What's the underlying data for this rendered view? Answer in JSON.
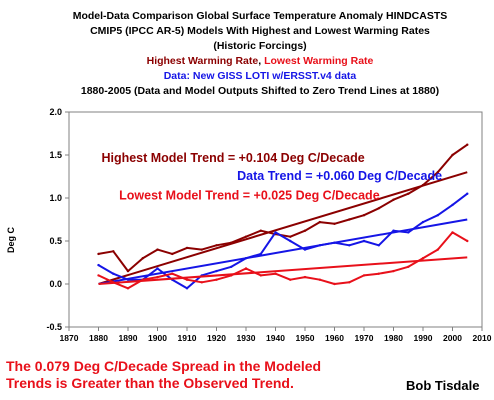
{
  "chart_data": {
    "type": "line",
    "title_lines": [
      "Model-Data Comparison Global Surface Temperature Anomaly HINDCASTS",
      "CMIP5 (IPCC AR-5) Models With Highest and Lowest Warming Rates",
      "(Historic Forcings)"
    ],
    "subtitle_highest": "Highest Warming Rate",
    "subtitle_separator": ", ",
    "subtitle_lowest": "Lowest Warming Rate",
    "data_line": "Data: New GISS LOTI w/ERSST.v4 data",
    "period_line": "1880-2005 (Data and Model Outputs Shifted to Zero Trend Lines at 1880)",
    "ylabel": "Deg C",
    "xlabel": "",
    "xlim": [
      1870,
      2010
    ],
    "ylim": [
      -0.5,
      2.0
    ],
    "x_ticks": [
      "1870",
      "1880",
      "1890",
      "1900",
      "1910",
      "1920",
      "1930",
      "1940",
      "1950",
      "1960",
      "1970",
      "1980",
      "1990",
      "2000",
      "2010"
    ],
    "y_ticks": [
      "-0.5",
      "0.0",
      "0.5",
      "1.0",
      "1.5",
      "2.0"
    ],
    "grid": false,
    "annotations": [
      {
        "text": "Highest Model Trend = +0.104 Deg C/Decade",
        "color": "#8b0000",
        "x": 1881,
        "y": 1.42
      },
      {
        "text": "Data Trend = +0.060 Deg C/Decade",
        "color": "#1515e6",
        "x": 1927,
        "y": 1.21
      },
      {
        "text": "Lowest Model Trend = +0.025 Deg C/Decade",
        "color": "#e8101a",
        "x": 1887,
        "y": 0.98
      }
    ],
    "x": [
      1880,
      1885,
      1890,
      1895,
      1900,
      1905,
      1910,
      1915,
      1920,
      1925,
      1930,
      1935,
      1940,
      1945,
      1950,
      1955,
      1960,
      1965,
      1970,
      1975,
      1980,
      1985,
      1990,
      1995,
      2000,
      2005
    ],
    "series": [
      {
        "color": "#8b0000",
        "role": "highest-model",
        "values": [
          0.35,
          0.38,
          0.15,
          0.3,
          0.4,
          0.35,
          0.42,
          0.4,
          0.45,
          0.48,
          0.55,
          0.62,
          0.58,
          0.55,
          0.62,
          0.72,
          0.7,
          0.75,
          0.8,
          0.88,
          0.98,
          1.05,
          1.15,
          1.3,
          1.5,
          1.62
        ],
        "trend": {
          "x": [
            1880,
            2005
          ],
          "y": [
            0.0,
            1.3
          ]
        }
      },
      {
        "color": "#1515e6",
        "role": "data",
        "values": [
          0.22,
          0.12,
          0.05,
          0.05,
          0.18,
          0.05,
          -0.05,
          0.1,
          0.15,
          0.2,
          0.3,
          0.35,
          0.6,
          0.5,
          0.4,
          0.45,
          0.48,
          0.45,
          0.5,
          0.45,
          0.62,
          0.6,
          0.72,
          0.8,
          0.92,
          1.05
        ],
        "trend": {
          "x": [
            1880,
            2005
          ],
          "y": [
            0.0,
            0.75
          ]
        }
      },
      {
        "color": "#e8101a",
        "role": "lowest-model",
        "values": [
          0.1,
          0.02,
          -0.05,
          0.05,
          0.08,
          0.12,
          0.05,
          0.02,
          0.05,
          0.1,
          0.18,
          0.1,
          0.12,
          0.05,
          0.08,
          0.05,
          0.0,
          0.02,
          0.1,
          0.12,
          0.15,
          0.2,
          0.3,
          0.4,
          0.6,
          0.5
        ],
        "trend": {
          "x": [
            1880,
            2005
          ],
          "y": [
            0.0,
            0.31
          ]
        }
      }
    ]
  },
  "footer": {
    "note": "The 0.079 Deg C/Decade Spread in the Modeled Trends is Greater than the Observed Trend.",
    "author": "Bob Tisdale"
  }
}
